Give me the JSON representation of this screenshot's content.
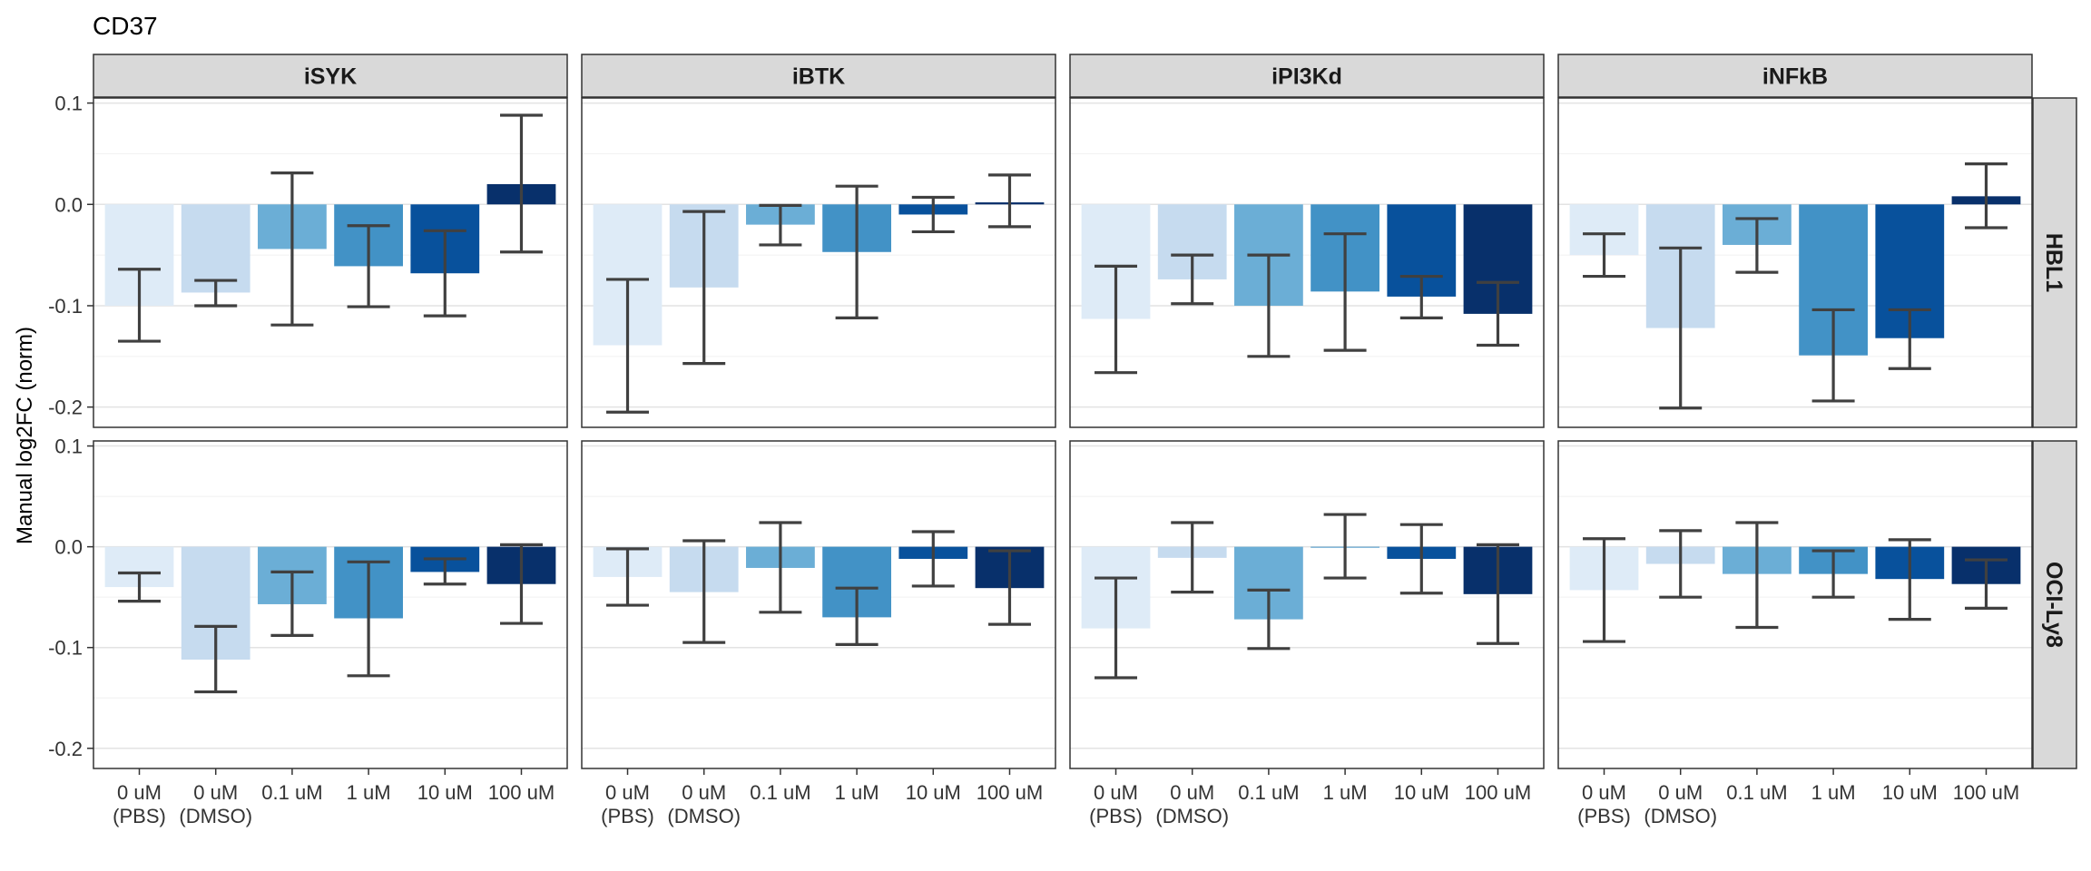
{
  "chart_data": {
    "type": "bar",
    "title": "CD37",
    "ylabel": "Manual log2FC (norm)",
    "xlabel": "",
    "ylim": [
      -0.22,
      0.105
    ],
    "yticks": [
      {
        "value": 0.1,
        "label": "0.1"
      },
      {
        "value": 0.0,
        "label": "0.0"
      },
      {
        "value": -0.1,
        "label": "-0.1"
      },
      {
        "value": -0.2,
        "label": "-0.2"
      }
    ],
    "categories": [
      {
        "line1": "0 uM",
        "line2": "(PBS)"
      },
      {
        "line1": "0 uM",
        "line2": "(DMSO)"
      },
      {
        "line1": "0.1 uM",
        "line2": ""
      },
      {
        "line1": "1 uM",
        "line2": ""
      },
      {
        "line1": "10 uM",
        "line2": ""
      },
      {
        "line1": "100 uM",
        "line2": ""
      }
    ],
    "bar_colors": [
      "#deebf7",
      "#c6dbef",
      "#6baed6",
      "#4292c6",
      "#08519c",
      "#08306b"
    ],
    "column_facets": [
      "iSYK",
      "iBTK",
      "iPI3Kd",
      "iNFkB"
    ],
    "row_facets": [
      "HBL1",
      "OCI-Ly8"
    ],
    "grid": true,
    "panels": [
      {
        "row": "HBL1",
        "col": "iSYK",
        "values": [
          -0.1,
          -0.087,
          -0.044,
          -0.061,
          -0.068,
          0.02
        ],
        "err_low": [
          -0.135,
          -0.1,
          -0.119,
          -0.101,
          -0.11,
          -0.047
        ],
        "err_high": [
          -0.064,
          -0.075,
          0.031,
          -0.021,
          -0.026,
          0.088
        ]
      },
      {
        "row": "HBL1",
        "col": "iBTK",
        "values": [
          -0.139,
          -0.082,
          -0.02,
          -0.047,
          -0.01,
          0.002
        ],
        "err_low": [
          -0.205,
          -0.157,
          -0.04,
          -0.112,
          -0.027,
          -0.022
        ],
        "err_high": [
          -0.074,
          -0.007,
          -0.001,
          0.018,
          0.007,
          0.029
        ]
      },
      {
        "row": "HBL1",
        "col": "iPI3Kd",
        "values": [
          -0.113,
          -0.074,
          -0.1,
          -0.086,
          -0.091,
          -0.108
        ],
        "err_low": [
          -0.166,
          -0.098,
          -0.15,
          -0.144,
          -0.112,
          -0.139
        ],
        "err_high": [
          -0.061,
          -0.05,
          -0.05,
          -0.029,
          -0.071,
          -0.077
        ]
      },
      {
        "row": "HBL1",
        "col": "iNFkB",
        "values": [
          -0.05,
          -0.122,
          -0.04,
          -0.149,
          -0.132,
          0.008
        ],
        "err_low": [
          -0.071,
          -0.201,
          -0.067,
          -0.194,
          -0.162,
          -0.023
        ],
        "err_high": [
          -0.029,
          -0.043,
          -0.014,
          -0.104,
          -0.104,
          0.04
        ]
      },
      {
        "row": "OCI-Ly8",
        "col": "iSYK",
        "values": [
          -0.04,
          -0.112,
          -0.057,
          -0.071,
          -0.025,
          -0.037
        ],
        "err_low": [
          -0.054,
          -0.144,
          -0.088,
          -0.128,
          -0.037,
          -0.076
        ],
        "err_high": [
          -0.026,
          -0.079,
          -0.025,
          -0.015,
          -0.012,
          0.002
        ]
      },
      {
        "row": "OCI-Ly8",
        "col": "iBTK",
        "values": [
          -0.03,
          -0.045,
          -0.021,
          -0.07,
          -0.012,
          -0.041
        ],
        "err_low": [
          -0.058,
          -0.095,
          -0.065,
          -0.097,
          -0.039,
          -0.077
        ],
        "err_high": [
          -0.002,
          0.006,
          0.024,
          -0.041,
          0.015,
          -0.004
        ]
      },
      {
        "row": "OCI-Ly8",
        "col": "iPI3Kd",
        "values": [
          -0.081,
          -0.011,
          -0.072,
          0.0,
          -0.012,
          -0.047
        ],
        "err_low": [
          -0.13,
          -0.045,
          -0.101,
          -0.031,
          -0.046,
          -0.096
        ],
        "err_high": [
          -0.031,
          0.024,
          -0.043,
          0.032,
          0.022,
          0.002
        ]
      },
      {
        "row": "OCI-Ly8",
        "col": "iNFkB",
        "values": [
          -0.043,
          -0.017,
          -0.027,
          -0.027,
          -0.032,
          -0.037
        ],
        "err_low": [
          -0.094,
          -0.05,
          -0.08,
          -0.05,
          -0.072,
          -0.061
        ],
        "err_high": [
          0.008,
          0.016,
          0.024,
          -0.004,
          0.007,
          -0.013
        ]
      }
    ]
  }
}
